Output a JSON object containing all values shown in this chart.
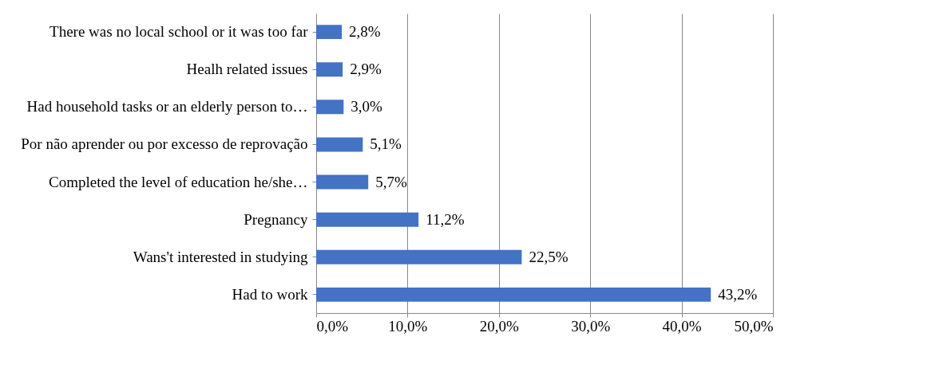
{
  "chart_data": {
    "type": "bar",
    "orientation": "horizontal",
    "categories": [
      "There was no local school or it was too far",
      "Healh related issues",
      "Had household tasks or an elderly person to…",
      "Por não aprender ou por excesso de reprovação",
      "Completed the level of education he/she…",
      "Pregnancy",
      "Wans't interested in studying",
      "Had to work"
    ],
    "values": [
      2.8,
      2.9,
      3.0,
      5.1,
      5.7,
      11.2,
      22.5,
      43.2
    ],
    "value_labels": [
      "2,8%",
      "2,9%",
      "3,0%",
      "5,1%",
      "5,7%",
      "11,2%",
      "22,5%",
      "43,2%"
    ],
    "color": "#4472c4",
    "xlim": [
      0,
      50
    ],
    "xticks": [
      {
        "value": 0,
        "label": "0,0%"
      },
      {
        "value": 10,
        "label": "10,0%"
      },
      {
        "value": 20,
        "label": "20,0%"
      },
      {
        "value": 30,
        "label": "30,0%"
      },
      {
        "value": 40,
        "label": "40,0%"
      },
      {
        "value": 50,
        "label": "50,0%"
      }
    ],
    "grid": "x"
  }
}
